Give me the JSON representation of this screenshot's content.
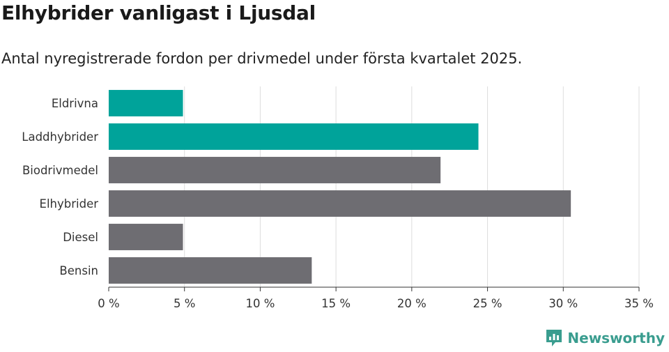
{
  "header": {
    "title": "Elhybrider vanligast i Ljusdal",
    "subtitle": "Antal nyregistrerade fordon per drivmedel under första kvartalet 2025."
  },
  "logo": {
    "text": "Newsworthy",
    "icon": "newsworthy-chart-icon",
    "color": "#3a9d8f"
  },
  "colors": {
    "highlight": "#00a39a",
    "default": "#6e6d72",
    "grid": "#dddddd",
    "axis": "#333333"
  },
  "chart_data": {
    "type": "bar",
    "orientation": "horizontal",
    "categories": [
      "Eldrivna",
      "Laddhybrider",
      "Biodrivmedel",
      "Elhybrider",
      "Diesel",
      "Bensin"
    ],
    "values": [
      4.9,
      24.4,
      21.9,
      30.5,
      4.9,
      13.4
    ],
    "highlighted": [
      true,
      true,
      false,
      false,
      false,
      false
    ],
    "xlim": [
      0,
      35
    ],
    "xticks": [
      0,
      5,
      10,
      15,
      20,
      25,
      30,
      35
    ],
    "xtick_labels": [
      "0 %",
      "5 %",
      "10 %",
      "15 %",
      "20 %",
      "25 %",
      "30 %",
      "35 %"
    ],
    "unit": "%",
    "grid": true
  }
}
